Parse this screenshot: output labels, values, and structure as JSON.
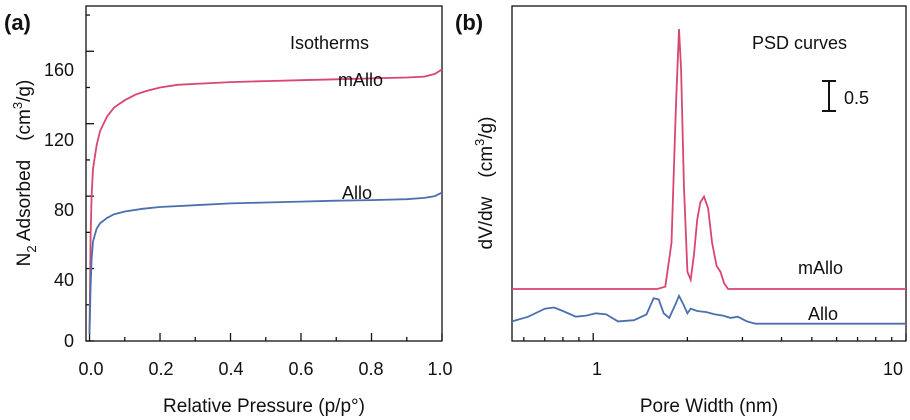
{
  "chart_data": [
    {
      "panel": "(a)",
      "type": "line",
      "annotation": "Isotherms",
      "xlabel": "Relative Pressure (p/p°)",
      "ylabel": {
        "main": "N",
        "sub": "2",
        "rest": " Adsorbed　(cm",
        "sup": "3",
        "end": "/g)"
      },
      "xlim": [
        -0.01,
        1.0
      ],
      "ylim": [
        0,
        185
      ],
      "xticks": [
        "0.0",
        "0.2",
        "0.4",
        "0.6",
        "0.8",
        "1.0"
      ],
      "yticks": [
        "0",
        "40",
        "80",
        "120",
        "160"
      ],
      "grid": false,
      "series": [
        {
          "name": "mAllo",
          "color": "#d9466e",
          "x": [
            0.0,
            0.003,
            0.006,
            0.01,
            0.02,
            0.03,
            0.05,
            0.07,
            0.1,
            0.13,
            0.16,
            0.2,
            0.25,
            0.3,
            0.4,
            0.5,
            0.6,
            0.7,
            0.8,
            0.9,
            0.95,
            0.98,
            1.0
          ],
          "y": [
            4,
            58,
            80,
            95,
            108,
            116,
            124,
            129,
            133,
            136,
            138,
            140,
            141.5,
            142,
            143,
            143.5,
            144,
            144.5,
            145,
            145.5,
            146,
            147.5,
            150
          ]
        },
        {
          "name": "Allo",
          "color": "#4a70b0",
          "x": [
            0.0,
            0.003,
            0.006,
            0.01,
            0.02,
            0.03,
            0.05,
            0.07,
            0.1,
            0.15,
            0.2,
            0.3,
            0.4,
            0.5,
            0.6,
            0.7,
            0.8,
            0.9,
            0.95,
            0.98,
            1.0
          ],
          "y": [
            4,
            30,
            45,
            55,
            62,
            65,
            68,
            70,
            71.5,
            73,
            74,
            75,
            76,
            76.5,
            77,
            77.5,
            77.8,
            78.3,
            79,
            80,
            82
          ]
        }
      ]
    },
    {
      "panel": "(b)",
      "type": "line",
      "annotation": "PSD curves",
      "scale_bar_label": "0.5",
      "xlabel": "Pore Width (nm)",
      "ylabel": {
        "main": "dV/dw　(cm",
        "sup": "3",
        "end": "/g)"
      },
      "xscale": "log",
      "xlim": [
        0.55,
        10
      ],
      "ylim": [
        -0.15,
        2.75
      ],
      "xticks": [
        "1",
        "10"
      ],
      "grid": false,
      "series": [
        {
          "name": "mAllo",
          "color": "#d9466e",
          "x": [
            0.55,
            1.6,
            1.7,
            1.78,
            1.84,
            1.88,
            1.91,
            1.95,
            2.0,
            2.05,
            2.1,
            2.15,
            2.2,
            2.26,
            2.33,
            2.4,
            2.48,
            2.55,
            2.62,
            2.7,
            3.0,
            10
          ],
          "y": [
            0.3,
            0.3,
            0.32,
            0.7,
            1.9,
            2.55,
            2.2,
            1.2,
            0.45,
            0.38,
            0.6,
            0.9,
            1.05,
            1.1,
            1.0,
            0.7,
            0.5,
            0.45,
            0.35,
            0.3,
            0.3,
            0.3
          ]
        },
        {
          "name": "Allo",
          "color": "#4a70b0",
          "x": [
            0.55,
            0.62,
            0.7,
            0.75,
            0.8,
            0.88,
            0.95,
            1.02,
            1.1,
            1.2,
            1.35,
            1.48,
            1.56,
            1.62,
            1.68,
            1.75,
            1.82,
            1.88,
            1.94,
            2.0,
            2.05,
            2.15,
            2.3,
            2.45,
            2.6,
            2.75,
            2.9,
            3.0,
            3.1,
            3.3,
            10
          ],
          "y": [
            0.02,
            0.06,
            0.13,
            0.14,
            0.11,
            0.06,
            0.07,
            0.09,
            0.08,
            0.02,
            0.03,
            0.08,
            0.22,
            0.21,
            0.09,
            0.05,
            0.15,
            0.24,
            0.17,
            0.09,
            0.13,
            0.11,
            0.1,
            0.08,
            0.07,
            0.05,
            0.06,
            0.04,
            0.02,
            0.0,
            0.0
          ]
        }
      ]
    }
  ]
}
